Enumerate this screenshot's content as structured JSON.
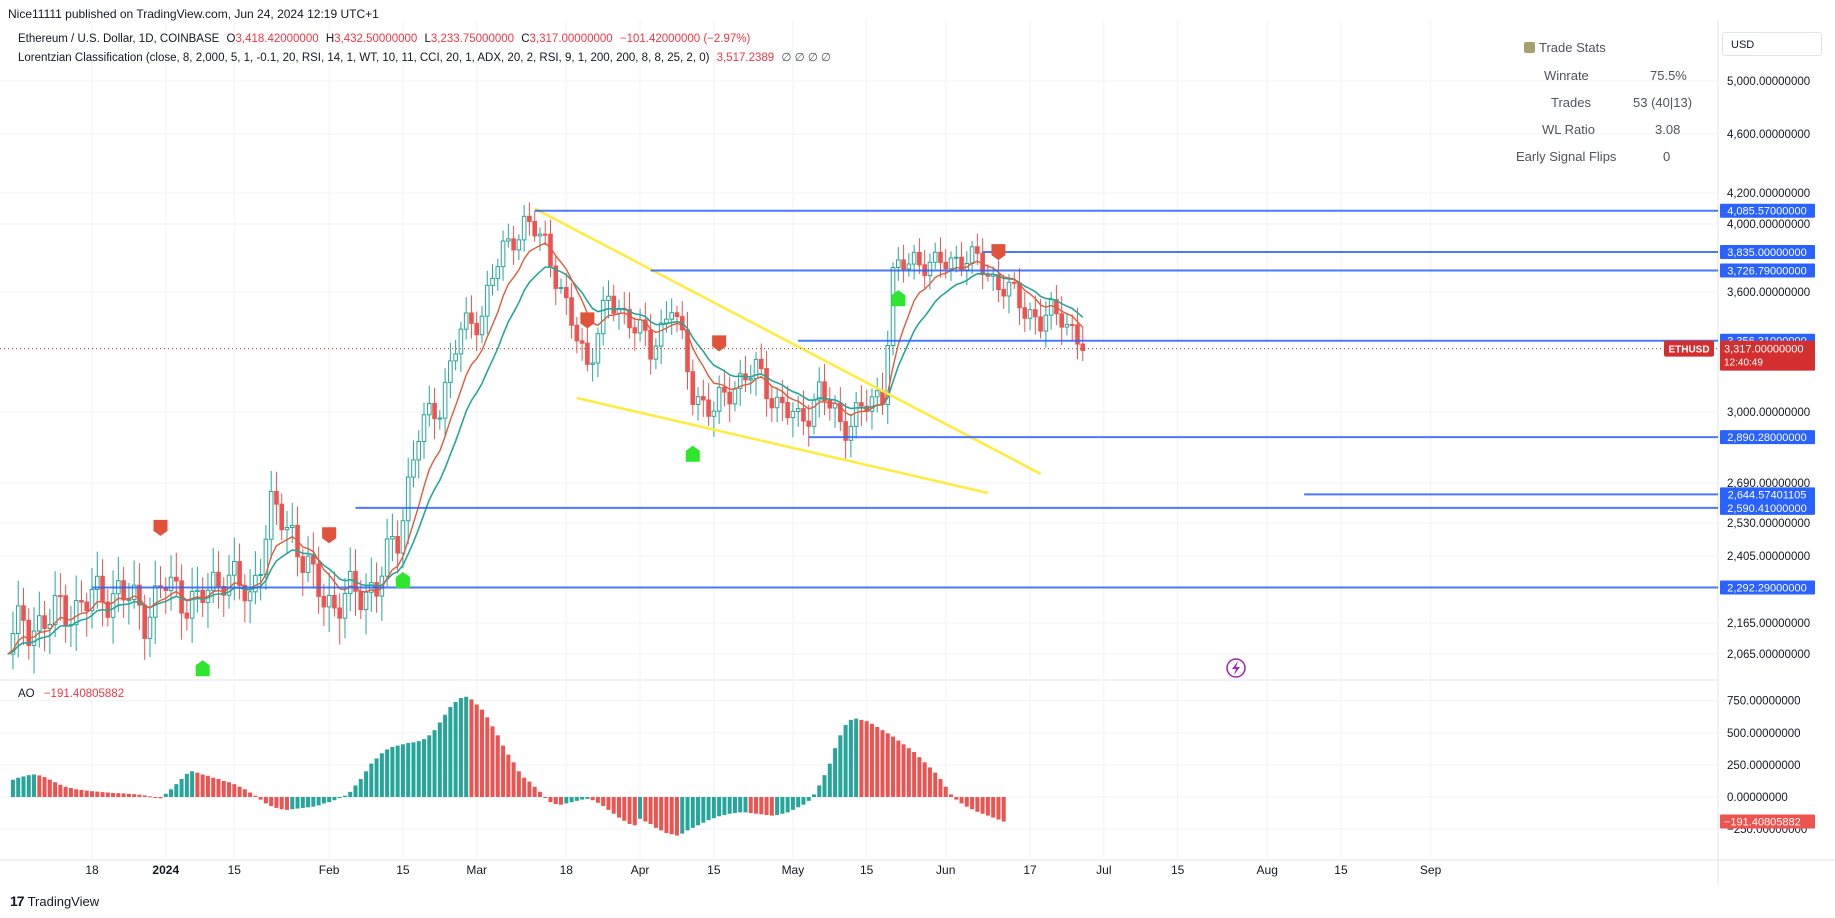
{
  "header": {
    "publisher": "Nice11111 published on TradingView.com, Jun 24, 2024 12:19 UTC+1"
  },
  "legend": {
    "symbol": "Ethereum / U.S. Dollar, 1D, COINBASE",
    "o_label": "O",
    "o_value": "3,418.42000000",
    "h_label": "H",
    "h_value": "3,432.50000000",
    "l_label": "L",
    "l_value": "3,233.75000000",
    "c_label": "C",
    "c_value": "3,317.00000000",
    "change": "−101.42000000 (−2.97%)",
    "indicator": "Lorentzian Classification (close, 8, 2,000, 5, 1, -0.1, 20, RSI, 14, 1, WT, 10, 11, CCI, 20, 1, ADX, 20, 2, RSI, 9, 1, 200, 200, 8, 8, 25, 2, 0)",
    "indicator_value": "3,517.2389",
    "indicator_tail": "∅ ∅ ∅ ∅",
    "ao_label": "AO",
    "ao_value": "−191.40805882"
  },
  "trade_stats": {
    "title": "Trade Stats",
    "rows": [
      {
        "label": "Winrate",
        "value": "75.5%"
      },
      {
        "label": "Trades",
        "value": "53 (40|13)"
      },
      {
        "label": "WL Ratio",
        "value": "3.08"
      },
      {
        "label": "Early Signal Flips",
        "value": "0"
      }
    ]
  },
  "currency_selector": "USD",
  "footer": {
    "logo": "17",
    "brand": "TradingView"
  },
  "price_tag": {
    "symbol": "ETHUSD",
    "price": "3,317.00000000",
    "countdown": "12:40:49"
  },
  "colors": {
    "up": "#26a69a",
    "down": "#ef5350",
    "ema": "#26a69a",
    "kernel": "#e05a3c",
    "hline": "#2962ff",
    "trend": "#ffeb3b",
    "label_bg": "#2962ff",
    "price_tag": "#d32f2f"
  },
  "chart_data": [
    {
      "type": "candlestick",
      "title": "Ethereum / U.S. Dollar, 1D, COINBASE",
      "y_axis_ticks": [
        "5,000.00000000",
        "4,600.00000000",
        "4,200.00000000",
        "4,000.00000000",
        "3,600.00000000",
        "3,000.00000000",
        "2,690.00000000",
        "2,530.00000000",
        "2,405.00000000",
        "2,165.00000000",
        "2,065.00000000"
      ],
      "y_axis_tick_values": [
        5000,
        4600,
        4200,
        4000,
        3600,
        3000,
        2690,
        2530,
        2405,
        2165,
        2065
      ],
      "x_axis_ticks": [
        "18",
        "2024",
        "15",
        "Feb",
        "15",
        "Mar",
        "18",
        "Apr",
        "15",
        "May",
        "15",
        "Jun",
        "17",
        "Jul",
        "15",
        "Aug",
        "15",
        "Sep"
      ],
      "x_axis_tick_days": [
        0,
        14,
        27,
        45,
        59,
        73,
        90,
        104,
        118,
        133,
        147,
        162,
        178,
        192,
        206,
        223,
        237,
        254
      ],
      "x_axis_start": "Dec 18, 2023",
      "horizontal_levels": [
        {
          "label": "4,085.57000000",
          "value": 4085.57,
          "from_day": 84
        },
        {
          "label": "3,835.00000000",
          "value": 3835,
          "from_day": 169
        },
        {
          "label": "3,726.79000000",
          "value": 3726.79,
          "from_day": 106
        },
        {
          "label": "3,356.31000000",
          "value": 3356.31,
          "from_day": 134
        },
        {
          "label": "2,890.28000000",
          "value": 2890.28,
          "from_day": 136
        },
        {
          "label": "2,644.57401105",
          "value": 2644.57,
          "from_day": 230
        },
        {
          "label": "2,590.41000000",
          "value": 2590.41,
          "from_day": 50
        },
        {
          "label": "2,292.29000000",
          "value": 2292.29,
          "from_day": 0
        }
      ],
      "trend_lines": [
        {
          "from": {
            "day": 84,
            "value": 4100
          },
          "to": {
            "day": 180,
            "value": 2730
          }
        },
        {
          "from": {
            "day": 92,
            "value": 3070
          },
          "to": {
            "day": 170,
            "value": 2650
          }
        }
      ],
      "close_path": [
        {
          "day": 0,
          "value": 2250
        },
        {
          "day": 5,
          "value": 2280
        },
        {
          "day": 10,
          "value": 2200
        },
        {
          "day": 14,
          "value": 2300
        },
        {
          "day": 20,
          "value": 2230
        },
        {
          "day": 25,
          "value": 2350
        },
        {
          "day": 30,
          "value": 2250
        },
        {
          "day": 34,
          "value": 2580
        },
        {
          "day": 38,
          "value": 2500
        },
        {
          "day": 42,
          "value": 2300
        },
        {
          "day": 46,
          "value": 2230
        },
        {
          "day": 50,
          "value": 2270
        },
        {
          "day": 54,
          "value": 2300
        },
        {
          "day": 58,
          "value": 2480
        },
        {
          "day": 62,
          "value": 2900
        },
        {
          "day": 66,
          "value": 3050
        },
        {
          "day": 70,
          "value": 3400
        },
        {
          "day": 74,
          "value": 3500
        },
        {
          "day": 78,
          "value": 3850
        },
        {
          "day": 82,
          "value": 4000
        },
        {
          "day": 86,
          "value": 3900
        },
        {
          "day": 90,
          "value": 3500
        },
        {
          "day": 94,
          "value": 3250
        },
        {
          "day": 98,
          "value": 3550
        },
        {
          "day": 102,
          "value": 3480
        },
        {
          "day": 106,
          "value": 3300
        },
        {
          "day": 110,
          "value": 3550
        },
        {
          "day": 114,
          "value": 3100
        },
        {
          "day": 118,
          "value": 3000
        },
        {
          "day": 122,
          "value": 3150
        },
        {
          "day": 126,
          "value": 3200
        },
        {
          "day": 130,
          "value": 3050
        },
        {
          "day": 134,
          "value": 2950
        },
        {
          "day": 138,
          "value": 3100
        },
        {
          "day": 142,
          "value": 2950
        },
        {
          "day": 146,
          "value": 3000
        },
        {
          "day": 150,
          "value": 3100
        },
        {
          "day": 152,
          "value": 3700
        },
        {
          "day": 156,
          "value": 3800
        },
        {
          "day": 160,
          "value": 3750
        },
        {
          "day": 164,
          "value": 3800
        },
        {
          "day": 168,
          "value": 3780
        },
        {
          "day": 172,
          "value": 3650
        },
        {
          "day": 176,
          "value": 3550
        },
        {
          "day": 180,
          "value": 3450
        },
        {
          "day": 184,
          "value": 3500
        },
        {
          "day": 188,
          "value": 3317
        }
      ],
      "signals": [
        {
          "type": "sell",
          "day": 13
        },
        {
          "type": "buy",
          "day": 21
        },
        {
          "type": "sell",
          "day": 45
        },
        {
          "type": "buy",
          "day": 59
        },
        {
          "type": "sell",
          "day": 94
        },
        {
          "type": "buy",
          "day": 114
        },
        {
          "type": "sell",
          "day": 119
        },
        {
          "type": "buy",
          "day": 153
        },
        {
          "type": "sell",
          "day": 172
        }
      ]
    },
    {
      "type": "bar",
      "title": "AO",
      "y_axis_ticks": [
        "750.00000000",
        "500.00000000",
        "250.00000000",
        "0.00000000",
        "−250.00000000"
      ],
      "y_axis_tick_values": [
        750,
        500,
        250,
        0,
        -250
      ],
      "x_axis_start": "Dec 18, 2023",
      "values": [
        120,
        135,
        150,
        160,
        170,
        175,
        168,
        155,
        135,
        115,
        95,
        80,
        70,
        60,
        55,
        50,
        45,
        42,
        38,
        35,
        32,
        30,
        28,
        25,
        22,
        18,
        12,
        5,
        -2,
        -10,
        25,
        60,
        100,
        140,
        180,
        200,
        190,
        175,
        165,
        150,
        140,
        125,
        115,
        100,
        80,
        60,
        35,
        10,
        -20,
        -50,
        -70,
        -85,
        -95,
        -100,
        -95,
        -90,
        -85,
        -80,
        -75,
        -65,
        -50,
        -40,
        -25,
        -5,
        10,
        40,
        90,
        140,
        200,
        260,
        300,
        340,
        370,
        390,
        400,
        410,
        420,
        425,
        435,
        450,
        480,
        520,
        580,
        640,
        700,
        740,
        770,
        780,
        760,
        720,
        680,
        620,
        550,
        480,
        400,
        330,
        270,
        200,
        150,
        120,
        80,
        40,
        0,
        -40,
        -55,
        -60,
        -50,
        -40,
        -30,
        -20,
        -15,
        -25,
        -45,
        -70,
        -100,
        -130,
        -160,
        -185,
        -210,
        -220,
        -170,
        -190,
        -210,
        -240,
        -260,
        -280,
        -290,
        -300,
        -285,
        -260,
        -240,
        -220,
        -200,
        -180,
        -165,
        -150,
        -140,
        -130,
        -125,
        -120,
        -120,
        -125,
        -130,
        -135,
        -140,
        -145,
        -140,
        -130,
        -120,
        -100,
        -80,
        -60,
        -30,
        20,
        90,
        170,
        260,
        380,
        480,
        560,
        600,
        610,
        600,
        590,
        570,
        545,
        520,
        495,
        470,
        440,
        410,
        380,
        350,
        310,
        270,
        230,
        190,
        140,
        80,
        20,
        -20,
        -50,
        -75,
        -95,
        -115,
        -130,
        -145,
        -160,
        -175,
        -191
      ]
    }
  ]
}
